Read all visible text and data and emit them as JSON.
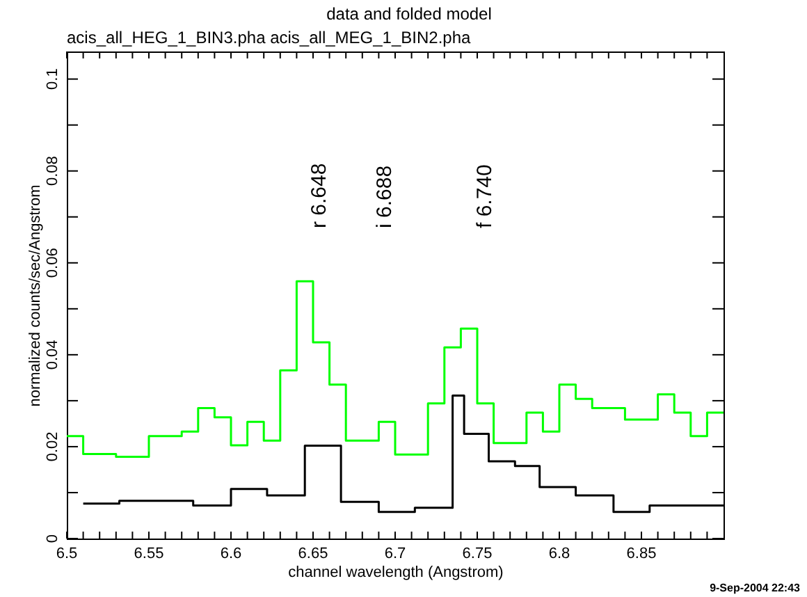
{
  "chart_data": {
    "type": "step",
    "title": "data and folded model",
    "subtitle": "acis_all_HEG_1_BIN3.pha acis_all_MEG_1_BIN2.pha",
    "xlabel": "channel wavelength (Angstrom)",
    "ylabel": "normalized counts/sec/Angstrom",
    "series": [
      {
        "color": "#00ff00",
        "x": [
          6.5,
          6.51,
          6.53,
          6.55,
          6.57,
          6.58,
          6.59,
          6.6,
          6.61,
          6.62,
          6.63,
          6.64,
          6.65,
          6.66,
          6.67,
          6.69,
          6.7,
          6.72,
          6.73,
          6.74,
          6.75,
          6.76,
          6.78,
          6.79,
          6.8,
          6.81,
          6.82,
          6.84,
          6.86,
          6.87,
          6.88,
          6.89,
          6.9
        ],
        "values": [
          0.0223,
          0.0184,
          0.0178,
          0.0223,
          0.0233,
          0.0284,
          0.0264,
          0.0203,
          0.0254,
          0.0213,
          0.0366,
          0.056,
          0.0427,
          0.0335,
          0.0213,
          0.0254,
          0.0183,
          0.0294,
          0.0416,
          0.0457,
          0.0294,
          0.0208,
          0.0274,
          0.0233,
          0.0335,
          0.0304,
          0.0284,
          0.0259,
          0.0314,
          0.0274,
          0.0223,
          0.0274,
          0.0274
        ]
      },
      {
        "color": "#000000",
        "x": [
          6.51,
          6.532,
          6.577,
          6.6,
          6.622,
          6.645,
          6.667,
          6.69,
          6.712,
          6.735,
          6.742,
          6.757,
          6.773,
          6.788,
          6.81,
          6.833,
          6.855,
          6.9
        ],
        "values": [
          0.0076,
          0.0082,
          0.0072,
          0.0108,
          0.0094,
          0.0202,
          0.008,
          0.0058,
          0.0067,
          0.0311,
          0.0228,
          0.0168,
          0.0158,
          0.0112,
          0.0094,
          0.0058,
          0.0072,
          0.0072
        ]
      }
    ],
    "xlim": [
      6.5,
      6.9
    ],
    "ylim": [
      0,
      0.106
    ],
    "xticks": [
      {
        "value": 6.5,
        "label": "6.5"
      },
      {
        "value": 6.51,
        "label": null
      },
      {
        "value": 6.52,
        "label": null
      },
      {
        "value": 6.53,
        "label": null
      },
      {
        "value": 6.54,
        "label": null
      },
      {
        "value": 6.55,
        "label": "6.55"
      },
      {
        "value": 6.56,
        "label": null
      },
      {
        "value": 6.57,
        "label": null
      },
      {
        "value": 6.58,
        "label": null
      },
      {
        "value": 6.59,
        "label": null
      },
      {
        "value": 6.6,
        "label": "6.6"
      },
      {
        "value": 6.61,
        "label": null
      },
      {
        "value": 6.62,
        "label": null
      },
      {
        "value": 6.63,
        "label": null
      },
      {
        "value": 6.64,
        "label": null
      },
      {
        "value": 6.65,
        "label": "6.65"
      },
      {
        "value": 6.66,
        "label": null
      },
      {
        "value": 6.67,
        "label": null
      },
      {
        "value": 6.68,
        "label": null
      },
      {
        "value": 6.69,
        "label": null
      },
      {
        "value": 6.7,
        "label": "6.7"
      },
      {
        "value": 6.71,
        "label": null
      },
      {
        "value": 6.72,
        "label": null
      },
      {
        "value": 6.73,
        "label": null
      },
      {
        "value": 6.74,
        "label": null
      },
      {
        "value": 6.75,
        "label": "6.75"
      },
      {
        "value": 6.76,
        "label": null
      },
      {
        "value": 6.77,
        "label": null
      },
      {
        "value": 6.78,
        "label": null
      },
      {
        "value": 6.79,
        "label": null
      },
      {
        "value": 6.8,
        "label": "6.8"
      },
      {
        "value": 6.81,
        "label": null
      },
      {
        "value": 6.82,
        "label": null
      },
      {
        "value": 6.83,
        "label": null
      },
      {
        "value": 6.84,
        "label": null
      },
      {
        "value": 6.85,
        "label": "6.85"
      },
      {
        "value": 6.86,
        "label": null
      },
      {
        "value": 6.87,
        "label": null
      },
      {
        "value": 6.88,
        "label": null
      },
      {
        "value": 6.89,
        "label": null
      }
    ],
    "yticks": [
      0,
      {
        "value": 0.01,
        "label": null
      },
      0.02,
      {
        "value": 0.03,
        "label": null
      },
      0.04,
      {
        "value": 0.05,
        "label": null
      },
      0.06,
      {
        "value": 0.07,
        "label": null
      },
      0.08,
      {
        "value": 0.09,
        "label": null
      },
      0.1
    ],
    "grid": false,
    "annotations": [
      "r 6.648",
      "i 6.688",
      "f 6.740",
      "9-Sep-2004 22:43"
    ]
  }
}
